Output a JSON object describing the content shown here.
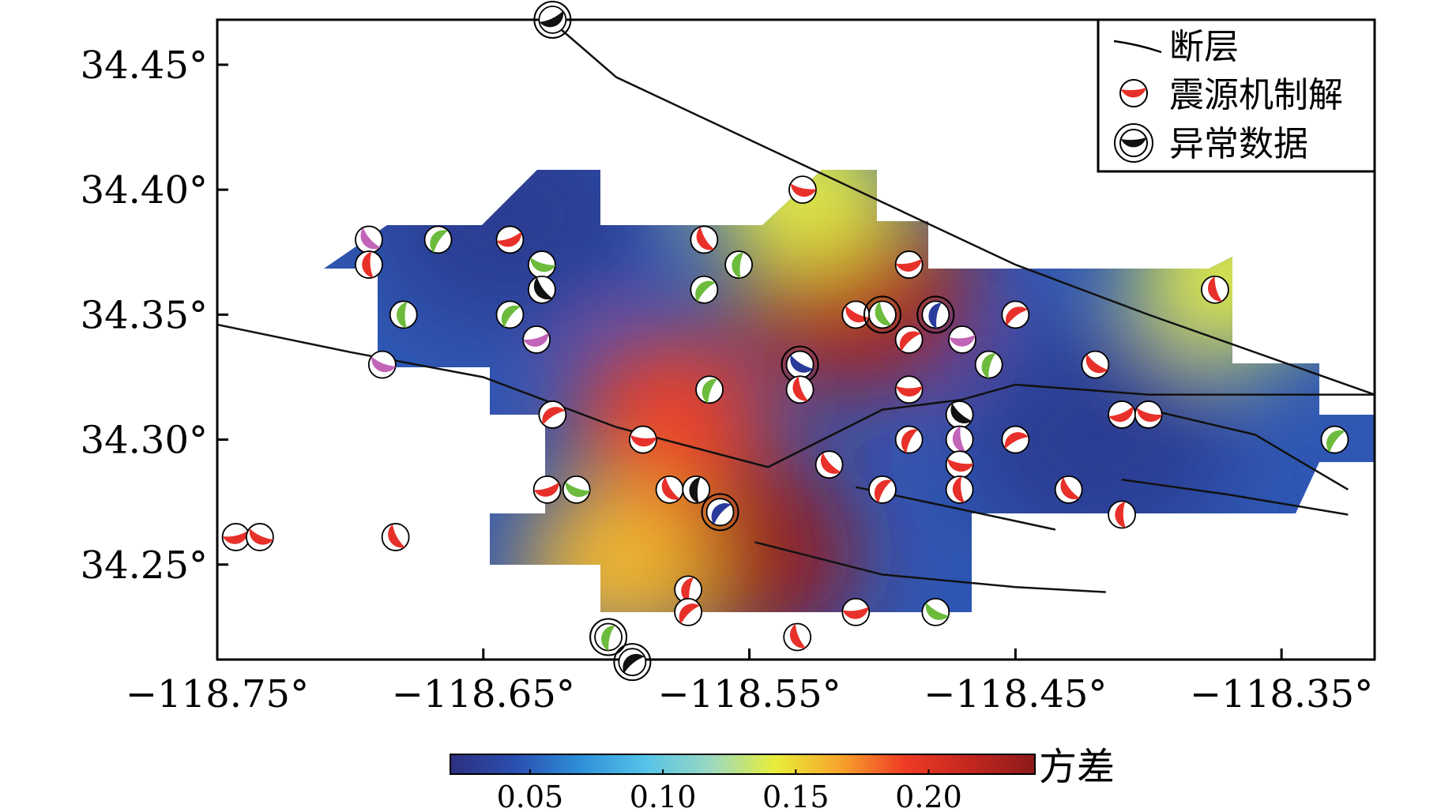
{
  "map": {
    "x_ticks": [
      -118.75,
      -118.65,
      -118.55,
      -118.45,
      -118.35
    ],
    "y_ticks": [
      34.25,
      34.3,
      34.35,
      34.4,
      34.45
    ],
    "x_tick_labels": [
      "−118.75°",
      "−118.65°",
      "−118.55°",
      "−118.45°",
      "−118.35°"
    ],
    "y_tick_labels": [
      "34.25°",
      "34.30°",
      "34.35°",
      "34.40°",
      "34.45°"
    ],
    "lon_range": [
      -118.75,
      -118.315
    ],
    "lat_range": [
      34.212,
      34.468
    ],
    "hotspots": [
      {
        "lon": -118.555,
        "lat": 34.255,
        "value": 0.235
      },
      {
        "lon": -118.51,
        "lat": 34.36,
        "value": 0.225
      },
      {
        "lon": -118.58,
        "lat": 34.31,
        "value": 0.19
      },
      {
        "lon": -118.53,
        "lat": 34.4,
        "value": 0.14
      },
      {
        "lon": -118.37,
        "lat": 34.365,
        "value": 0.14
      },
      {
        "lon": -118.6,
        "lat": 34.25,
        "value": 0.16
      },
      {
        "lon": -118.64,
        "lat": 34.39,
        "value": 0.03
      },
      {
        "lon": -118.42,
        "lat": 34.3,
        "value": 0.03
      }
    ],
    "faults": [
      [
        [
          -118.625,
          34.468
        ],
        [
          -118.6,
          34.445
        ],
        [
          -118.55,
          34.42
        ],
        [
          -118.5,
          34.395
        ],
        [
          -118.45,
          34.37
        ],
        [
          -118.4,
          34.35
        ],
        [
          -118.315,
          34.318
        ]
      ],
      [
        [
          -118.75,
          34.346
        ],
        [
          -118.7,
          34.335
        ],
        [
          -118.65,
          34.325
        ],
        [
          -118.6,
          34.305
        ],
        [
          -118.543,
          34.289
        ],
        [
          -118.5,
          34.312
        ],
        [
          -118.47,
          34.316
        ],
        [
          -118.45,
          34.322
        ],
        [
          -118.4,
          34.318
        ],
        [
          -118.315,
          34.318
        ]
      ],
      [
        [
          -118.4,
          34.312
        ],
        [
          -118.36,
          34.302
        ],
        [
          -118.325,
          34.28
        ]
      ],
      [
        [
          -118.51,
          34.281
        ],
        [
          -118.47,
          34.272
        ],
        [
          -118.435,
          34.264
        ]
      ],
      [
        [
          -118.548,
          34.259
        ],
        [
          -118.5,
          34.246
        ],
        [
          -118.45,
          34.241
        ],
        [
          -118.416,
          34.239
        ]
      ],
      [
        [
          -118.41,
          34.284
        ],
        [
          -118.37,
          34.278
        ],
        [
          -118.325,
          34.27
        ]
      ]
    ],
    "mechanisms": [
      {
        "lon": -118.624,
        "lat": 34.468,
        "color": "#111111",
        "flag": "anomaly"
      },
      {
        "lon": -118.53,
        "lat": 34.4,
        "color": "#e8302a",
        "flag": "normal"
      },
      {
        "lon": -118.693,
        "lat": 34.38,
        "color": "#c264b8",
        "flag": "normal"
      },
      {
        "lon": -118.693,
        "lat": 34.37,
        "color": "#e8302a",
        "flag": "normal"
      },
      {
        "lon": -118.667,
        "lat": 34.38,
        "color": "#6cbb3c",
        "flag": "normal"
      },
      {
        "lon": -118.64,
        "lat": 34.38,
        "color": "#e8302a",
        "flag": "normal"
      },
      {
        "lon": -118.628,
        "lat": 34.37,
        "color": "#6cbb3c",
        "flag": "normal"
      },
      {
        "lon": -118.628,
        "lat": 34.36,
        "color": "#111111",
        "flag": "normal"
      },
      {
        "lon": -118.68,
        "lat": 34.35,
        "color": "#6cbb3c",
        "flag": "normal"
      },
      {
        "lon": -118.64,
        "lat": 34.35,
        "color": "#6cbb3c",
        "flag": "normal"
      },
      {
        "lon": -118.63,
        "lat": 34.34,
        "color": "#c264b8",
        "flag": "normal"
      },
      {
        "lon": -118.688,
        "lat": 34.33,
        "color": "#c264b8",
        "flag": "normal"
      },
      {
        "lon": -118.567,
        "lat": 34.38,
        "color": "#e8302a",
        "flag": "normal"
      },
      {
        "lon": -118.554,
        "lat": 34.37,
        "color": "#6cbb3c",
        "flag": "normal"
      },
      {
        "lon": -118.567,
        "lat": 34.36,
        "color": "#6cbb3c",
        "flag": "normal"
      },
      {
        "lon": -118.49,
        "lat": 34.37,
        "color": "#e8302a",
        "flag": "normal"
      },
      {
        "lon": -118.51,
        "lat": 34.35,
        "color": "#e8302a",
        "flag": "normal"
      },
      {
        "lon": -118.5,
        "lat": 34.35,
        "color": "#6cbb3c",
        "flag": "anomaly"
      },
      {
        "lon": -118.48,
        "lat": 34.35,
        "color": "#2a3b9c",
        "flag": "anomaly"
      },
      {
        "lon": -118.49,
        "lat": 34.34,
        "color": "#e8302a",
        "flag": "normal"
      },
      {
        "lon": -118.47,
        "lat": 34.34,
        "color": "#c264b8",
        "flag": "normal"
      },
      {
        "lon": -118.531,
        "lat": 34.33,
        "color": "#2a3b9c",
        "flag": "anomaly"
      },
      {
        "lon": -118.531,
        "lat": 34.32,
        "color": "#e8302a",
        "flag": "normal"
      },
      {
        "lon": -118.46,
        "lat": 34.33,
        "color": "#6cbb3c",
        "flag": "normal"
      },
      {
        "lon": -118.45,
        "lat": 34.35,
        "color": "#e8302a",
        "flag": "normal"
      },
      {
        "lon": -118.49,
        "lat": 34.32,
        "color": "#e8302a",
        "flag": "normal"
      },
      {
        "lon": -118.42,
        "lat": 34.33,
        "color": "#e8302a",
        "flag": "normal"
      },
      {
        "lon": -118.375,
        "lat": 34.36,
        "color": "#e8302a",
        "flag": "normal"
      },
      {
        "lon": -118.565,
        "lat": 34.32,
        "color": "#6cbb3c",
        "flag": "normal"
      },
      {
        "lon": -118.624,
        "lat": 34.31,
        "color": "#e8302a",
        "flag": "normal"
      },
      {
        "lon": -118.59,
        "lat": 34.3,
        "color": "#e8302a",
        "flag": "normal"
      },
      {
        "lon": -118.471,
        "lat": 34.31,
        "color": "#111111",
        "flag": "normal"
      },
      {
        "lon": -118.471,
        "lat": 34.3,
        "color": "#c264b8",
        "flag": "normal"
      },
      {
        "lon": -118.49,
        "lat": 34.3,
        "color": "#e8302a",
        "flag": "normal"
      },
      {
        "lon": -118.45,
        "lat": 34.3,
        "color": "#e8302a",
        "flag": "normal"
      },
      {
        "lon": -118.471,
        "lat": 34.29,
        "color": "#e8302a",
        "flag": "normal"
      },
      {
        "lon": -118.52,
        "lat": 34.29,
        "color": "#e8302a",
        "flag": "normal"
      },
      {
        "lon": -118.471,
        "lat": 34.28,
        "color": "#e8302a",
        "flag": "normal"
      },
      {
        "lon": -118.5,
        "lat": 34.28,
        "color": "#e8302a",
        "flag": "normal"
      },
      {
        "lon": -118.41,
        "lat": 34.31,
        "color": "#e8302a",
        "flag": "normal"
      },
      {
        "lon": -118.4,
        "lat": 34.31,
        "color": "#e8302a",
        "flag": "normal"
      },
      {
        "lon": -118.43,
        "lat": 34.28,
        "color": "#e8302a",
        "flag": "normal"
      },
      {
        "lon": -118.41,
        "lat": 34.27,
        "color": "#e8302a",
        "flag": "normal"
      },
      {
        "lon": -118.33,
        "lat": 34.3,
        "color": "#6cbb3c",
        "flag": "normal"
      },
      {
        "lon": -118.626,
        "lat": 34.28,
        "color": "#e8302a",
        "flag": "normal"
      },
      {
        "lon": -118.615,
        "lat": 34.28,
        "color": "#6cbb3c",
        "flag": "normal"
      },
      {
        "lon": -118.58,
        "lat": 34.28,
        "color": "#e8302a",
        "flag": "normal"
      },
      {
        "lon": -118.57,
        "lat": 34.28,
        "color": "#111111",
        "flag": "normal"
      },
      {
        "lon": -118.561,
        "lat": 34.271,
        "color": "#2a3b9c",
        "flag": "anomaly"
      },
      {
        "lon": -118.743,
        "lat": 34.261,
        "color": "#e8302a",
        "flag": "normal"
      },
      {
        "lon": -118.734,
        "lat": 34.261,
        "color": "#e8302a",
        "flag": "normal"
      },
      {
        "lon": -118.683,
        "lat": 34.261,
        "color": "#e8302a",
        "flag": "normal"
      },
      {
        "lon": -118.573,
        "lat": 34.24,
        "color": "#e8302a",
        "flag": "normal"
      },
      {
        "lon": -118.573,
        "lat": 34.231,
        "color": "#e8302a",
        "flag": "normal"
      },
      {
        "lon": -118.51,
        "lat": 34.231,
        "color": "#e8302a",
        "flag": "normal"
      },
      {
        "lon": -118.48,
        "lat": 34.231,
        "color": "#6cbb3c",
        "flag": "normal"
      },
      {
        "lon": -118.532,
        "lat": 34.221,
        "color": "#e8302a",
        "flag": "normal"
      },
      {
        "lon": -118.603,
        "lat": 34.221,
        "color": "#6cbb3c",
        "flag": "anomaly"
      },
      {
        "lon": -118.594,
        "lat": 34.211,
        "color": "#111111",
        "flag": "anomaly"
      }
    ]
  },
  "legend": {
    "fault_label": "断层",
    "focal_label": "震源机制解",
    "anomaly_label": "异常数据"
  },
  "colorbar": {
    "title": "方差",
    "vmin": 0.02,
    "vmax": 0.24,
    "ticks": [
      0.05,
      0.1,
      0.15,
      0.2
    ],
    "tick_labels": [
      "0.05",
      "0.10",
      "0.15",
      "0.20"
    ],
    "colors": [
      "#2e2f7f",
      "#2a4fb0",
      "#2e8fd9",
      "#55c3e8",
      "#9ad8c2",
      "#e8ee3a",
      "#f7a42b",
      "#ee3b25",
      "#c2271f",
      "#8b1a1a"
    ]
  }
}
